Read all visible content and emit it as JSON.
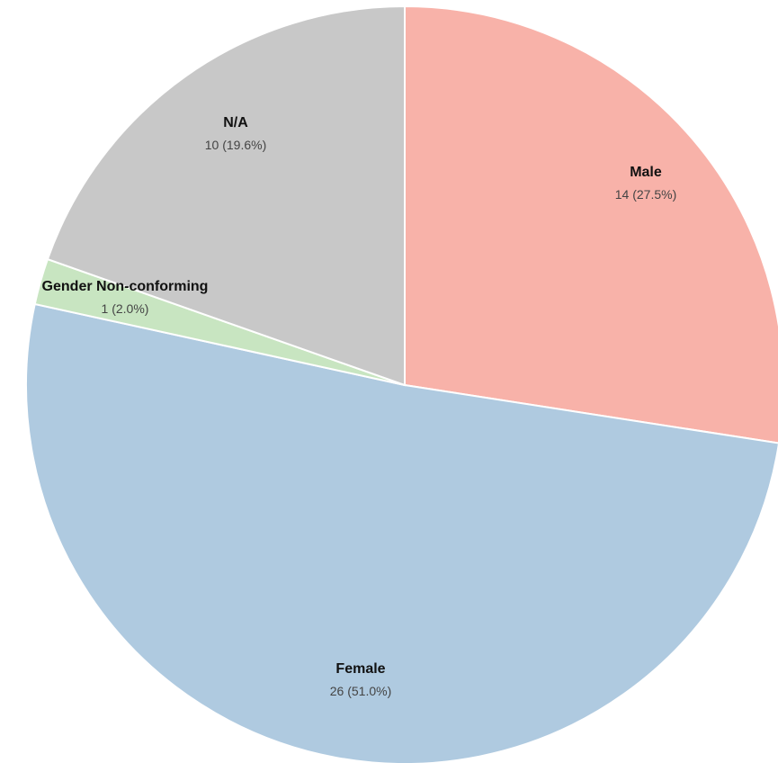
{
  "chart_data": {
    "type": "pie",
    "title": "",
    "total": 51,
    "start_angle_deg": 0,
    "direction": "clockwise",
    "slices": [
      {
        "name": "Male",
        "value": 14,
        "percent": 27.5,
        "value_text": "14 (27.5%)",
        "color": "#f8b2a9"
      },
      {
        "name": "Female",
        "value": 26,
        "percent": 51.0,
        "value_text": "26 (51.0%)",
        "color": "#afcae0"
      },
      {
        "name": "Gender Non-conforming",
        "value": 1,
        "percent": 2.0,
        "value_text": "1 (2.0%)",
        "color": "#c8e5c1"
      },
      {
        "name": "N/A",
        "value": 10,
        "percent": 19.6,
        "value_text": "10 (19.6%)",
        "color": "#c8c8c8"
      }
    ]
  }
}
